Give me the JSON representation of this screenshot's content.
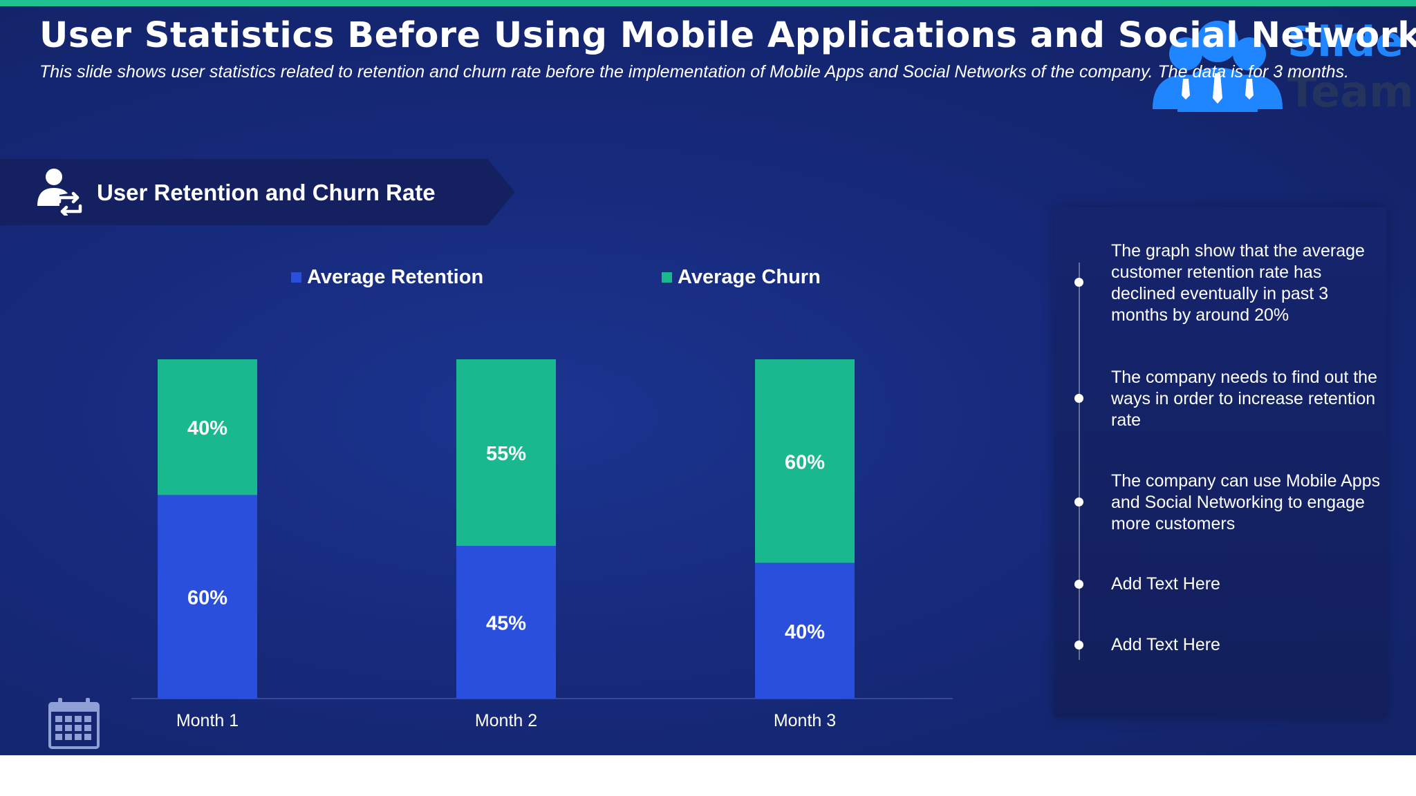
{
  "header": {
    "title": "User Statistics Before Using Mobile Applications and Social Networks",
    "subtitle": "This slide shows user statistics related to retention and churn rate before the implementation of Mobile Apps and Social Networks of the company. The data is for 3 months."
  },
  "logo": {
    "line1": "Slide",
    "line2": "Team"
  },
  "section": {
    "title": "User Retention and Churn Rate",
    "icon": "user-refresh-icon"
  },
  "colors": {
    "retention": "#2a4fdc",
    "churn": "#1ab88e",
    "accent": "#1fc191"
  },
  "chart_data": {
    "type": "bar",
    "stacked": true,
    "categories": [
      "Month 1",
      "Month 2",
      "Month 3"
    ],
    "series": [
      {
        "name": "Average Retention",
        "values": [
          60,
          45,
          40
        ],
        "labels": [
          "60%",
          "45%",
          "40%"
        ],
        "color": "#2a4fdc"
      },
      {
        "name": "Average Churn",
        "values": [
          40,
          55,
          60
        ],
        "labels": [
          "40%",
          "55%",
          "60%"
        ],
        "color": "#1ab88e"
      }
    ],
    "legend": "top",
    "grid": false,
    "ylim": [
      0,
      100
    ]
  },
  "notes": [
    "The graph show that the average customer retention rate has declined eventually in past 3 months by around 20%",
    "The company needs to find out the ways in order to increase retention rate",
    "The company can use Mobile Apps and Social Networking to engage more customers",
    "Add Text Here",
    "Add Text Here"
  ],
  "footer": {
    "icon": "calendar-icon"
  }
}
